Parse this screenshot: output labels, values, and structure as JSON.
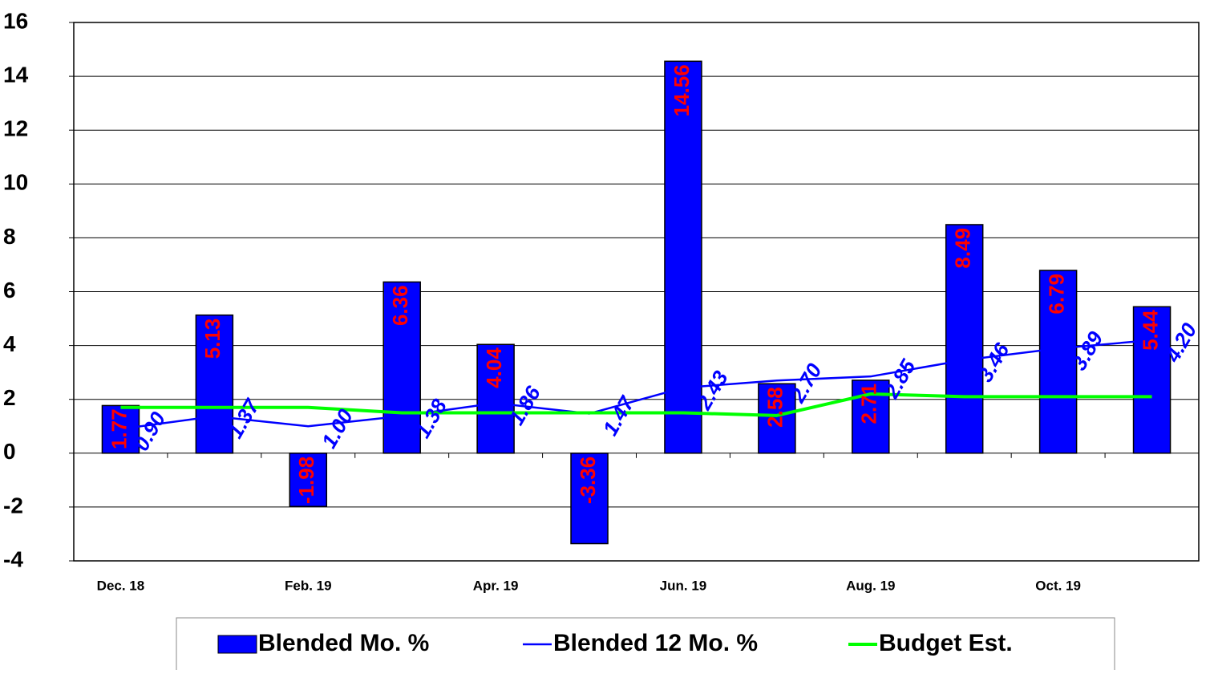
{
  "chart_data": {
    "type": "bar",
    "categories": [
      "Dec. 18",
      null,
      "Feb. 19",
      null,
      "Apr. 19",
      null,
      "Jun. 19",
      null,
      "Aug. 19",
      null,
      "Oct. 19",
      null
    ],
    "series": [
      {
        "name": "Blended Mo. %",
        "type": "bar",
        "color": "#0000ff",
        "label_color": "#ff0000",
        "values": [
          1.77,
          5.13,
          -1.98,
          6.36,
          4.04,
          -3.36,
          14.56,
          2.58,
          2.71,
          8.49,
          6.79,
          5.44
        ]
      },
      {
        "name": "Blended 12 Mo. %",
        "type": "line",
        "color": "#0000ff",
        "values": [
          0.9,
          1.37,
          1.0,
          1.38,
          1.86,
          1.47,
          2.43,
          2.7,
          2.85,
          3.46,
          3.89,
          4.2
        ],
        "value_labels": [
          "0.90",
          "1.37",
          "1.00",
          "1.38",
          "1.86",
          "1.47",
          "2.43",
          "2.70",
          "2.85",
          "3.46",
          "3.89",
          "4.20"
        ]
      },
      {
        "name": "Budget Est.",
        "type": "line",
        "color": "#00ff00",
        "values": [
          1.7,
          1.7,
          1.7,
          1.5,
          1.5,
          1.5,
          1.5,
          1.4,
          2.2,
          2.1,
          2.1,
          2.1
        ]
      }
    ],
    "ylim": [
      -4,
      16
    ],
    "yticks": [
      -4,
      -2,
      0,
      2,
      4,
      6,
      8,
      10,
      12,
      14,
      16
    ],
    "grid": true,
    "legend": "bottom"
  }
}
